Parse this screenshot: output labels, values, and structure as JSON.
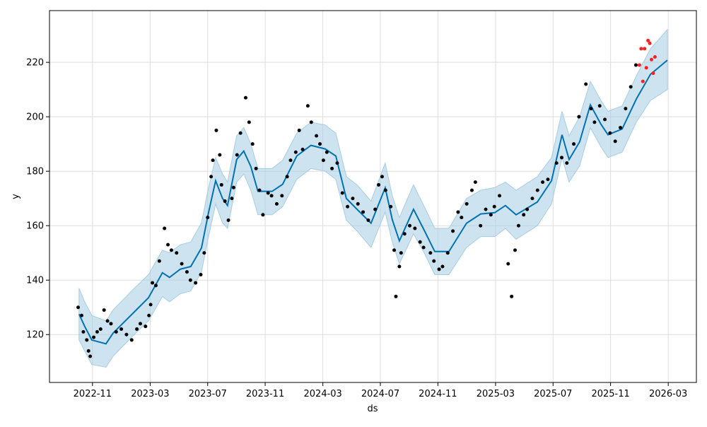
{
  "chart_data": {
    "type": "forecast",
    "x_label": "ds",
    "y_label": "y",
    "xlim": [
      2022.584,
      2026.33
    ],
    "ylim": [
      102.4,
      239
    ],
    "xticks": [
      {
        "value": 2022.833,
        "label": "2022-11"
      },
      {
        "value": 2023.167,
        "label": "2023-03"
      },
      {
        "value": 2023.5,
        "label": "2023-07"
      },
      {
        "value": 2023.833,
        "label": "2023-11"
      },
      {
        "value": 2024.167,
        "label": "2024-03"
      },
      {
        "value": 2024.5,
        "label": "2024-07"
      },
      {
        "value": 2024.833,
        "label": "2024-11"
      },
      {
        "value": 2025.167,
        "label": "2025-03"
      },
      {
        "value": 2025.5,
        "label": "2025-07"
      },
      {
        "value": 2025.833,
        "label": "2025-11"
      },
      {
        "value": 2026.167,
        "label": "2026-03"
      }
    ],
    "yticks": [
      120,
      140,
      160,
      180,
      200,
      220
    ],
    "grid": true,
    "observed": {
      "color": "#000000",
      "x": [
        2022.75,
        2022.77,
        2022.78,
        2022.8,
        2022.81,
        2022.82,
        2022.84,
        2022.86,
        2022.88,
        2022.9,
        2022.92,
        2022.94,
        2022.97,
        2023.0,
        2023.03,
        2023.06,
        2023.09,
        2023.11,
        2023.14,
        2023.16,
        2023.17,
        2023.18,
        2023.2,
        2023.22,
        2023.25,
        2023.27,
        2023.29,
        2023.32,
        2023.35,
        2023.38,
        2023.4,
        2023.43,
        2023.46,
        2023.48,
        2023.5,
        2023.52,
        2023.53,
        2023.55,
        2023.57,
        2023.58,
        2023.6,
        2023.62,
        2023.64,
        2023.65,
        2023.67,
        2023.69,
        2023.72,
        2023.74,
        2023.76,
        2023.78,
        2023.8,
        2023.82,
        2023.85,
        2023.87,
        2023.9,
        2023.93,
        2023.96,
        2023.98,
        2024.01,
        2024.03,
        2024.05,
        2024.08,
        2024.1,
        2024.13,
        2024.15,
        2024.17,
        2024.19,
        2024.22,
        2024.25,
        2024.28,
        2024.31,
        2024.34,
        2024.37,
        2024.4,
        2024.43,
        2024.47,
        2024.49,
        2024.51,
        2024.53,
        2024.56,
        2024.58,
        2024.59,
        2024.61,
        2024.62,
        2024.64,
        2024.67,
        2024.7,
        2024.73,
        2024.75,
        2024.79,
        2024.81,
        2024.84,
        2024.86,
        2024.89,
        2024.92,
        2024.95,
        2024.97,
        2025.0,
        2025.03,
        2025.05,
        2025.08,
        2025.11,
        2025.14,
        2025.16,
        2025.19,
        2025.24,
        2025.26,
        2025.28,
        2025.3,
        2025.33,
        2025.35,
        2025.38,
        2025.41,
        2025.44,
        2025.47,
        2025.52,
        2025.55,
        2025.58,
        2025.62,
        2025.65,
        2025.69,
        2025.72,
        2025.74,
        2025.77,
        2025.8,
        2025.83,
        2025.86,
        2025.89,
        2025.92,
        2025.95,
        2025.98
      ],
      "values": [
        130,
        127,
        121,
        118,
        114,
        112,
        119,
        121,
        122,
        129,
        125,
        124,
        121,
        122,
        120,
        118,
        122,
        124,
        123,
        127,
        131,
        139,
        138,
        147,
        159,
        153,
        151,
        150,
        146,
        143,
        140,
        139,
        142,
        150,
        163,
        178,
        184,
        195,
        186,
        175,
        169,
        162,
        170,
        174,
        186,
        194,
        207,
        198,
        190,
        181,
        173,
        164,
        172,
        171,
        168,
        171,
        178,
        184,
        187,
        195,
        188,
        204,
        198,
        193,
        190,
        184,
        187,
        181,
        183,
        172,
        167,
        170,
        168,
        165,
        162,
        166,
        175,
        178,
        173,
        167,
        151,
        134,
        145,
        150,
        157,
        160,
        159,
        154,
        152,
        150,
        147,
        144,
        145,
        150,
        158,
        165,
        163,
        168,
        173,
        176,
        160,
        166,
        164,
        167,
        171,
        146,
        134,
        151,
        160,
        164,
        166,
        170,
        173,
        176,
        177,
        183,
        185,
        183,
        190,
        200,
        212,
        203,
        198,
        204,
        199,
        194,
        191,
        196,
        203,
        211,
        219
      ]
    },
    "holdout": {
      "color": "#ff2020",
      "x": [
        2026.0,
        2026.01,
        2026.02,
        2026.03,
        2026.04,
        2026.05,
        2026.06,
        2026.07,
        2026.08,
        2026.09
      ],
      "values": [
        219,
        225,
        213,
        225,
        218,
        228,
        227,
        221,
        216,
        222
      ]
    },
    "forecast": {
      "color": "#0072b2",
      "band_color": "#a6cce3",
      "x": [
        2022.755,
        2022.788,
        2022.829,
        2022.911,
        2022.952,
        2023.013,
        2023.075,
        2023.157,
        2023.238,
        2023.279,
        2023.341,
        2023.402,
        2023.464,
        2023.505,
        2023.546,
        2023.586,
        2023.615,
        2023.668,
        2023.709,
        2023.75,
        2023.791,
        2023.873,
        2023.934,
        2024.016,
        2024.098,
        2024.18,
        2024.242,
        2024.303,
        2024.365,
        2024.446,
        2024.528,
        2024.569,
        2024.61,
        2024.692,
        2024.754,
        2024.815,
        2024.897,
        2024.999,
        2025.081,
        2025.163,
        2025.224,
        2025.286,
        2025.409,
        2025.491,
        2025.552,
        2025.593,
        2025.654,
        2025.716,
        2025.777,
        2025.818,
        2025.9,
        2025.982,
        2026.064,
        2026.162
      ],
      "values": [
        127.5,
        123,
        118,
        116.6,
        120.5,
        124.4,
        128.3,
        133.5,
        142.7,
        141,
        144,
        145,
        151.8,
        164.8,
        176.5,
        170,
        167.4,
        184.3,
        187.4,
        181.7,
        172.6,
        172.6,
        175.2,
        185.6,
        189.5,
        188.2,
        185.6,
        170,
        166,
        160.9,
        173.9,
        162.2,
        154.4,
        166,
        158.3,
        150.5,
        150.5,
        160.9,
        164.3,
        164.8,
        167.4,
        164,
        168.7,
        176.5,
        193.4,
        184.3,
        190.8,
        204.4,
        197.3,
        193.4,
        195.5,
        206.5,
        215.6,
        220.8
      ],
      "lower": [
        118,
        114,
        109,
        108,
        112,
        116,
        120,
        125,
        134,
        132,
        135,
        136,
        143,
        156,
        168,
        161,
        159,
        176,
        179,
        173,
        164,
        164,
        167,
        177,
        181,
        180,
        177,
        162,
        158,
        152,
        165,
        154,
        146,
        157,
        150,
        142,
        142,
        152,
        156,
        156,
        159,
        155,
        160,
        168,
        185,
        176,
        182,
        196,
        189,
        185,
        187,
        198,
        206,
        210
      ],
      "upper": [
        137,
        132,
        127,
        125,
        129,
        133,
        137,
        142,
        151,
        150,
        153,
        154,
        161,
        174,
        185,
        179,
        176,
        193,
        196,
        190,
        181,
        181,
        184,
        194,
        198,
        197,
        194,
        178,
        175,
        169,
        183,
        171,
        163,
        175,
        167,
        159,
        159,
        170,
        173,
        174,
        176,
        173,
        178,
        185,
        202,
        193,
        200,
        213,
        206,
        202,
        204,
        215,
        225,
        232
      ]
    }
  }
}
